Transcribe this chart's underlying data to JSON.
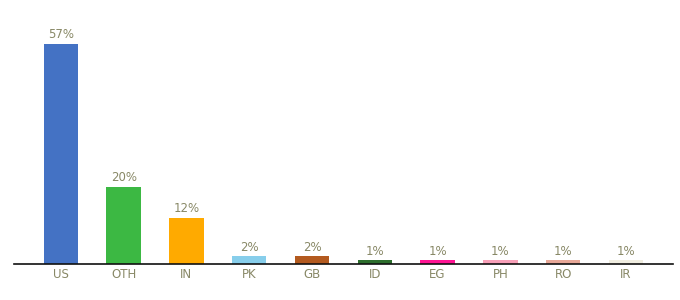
{
  "categories": [
    "US",
    "OTH",
    "IN",
    "PK",
    "GB",
    "ID",
    "EG",
    "PH",
    "RO",
    "IR"
  ],
  "values": [
    57,
    20,
    12,
    2,
    2,
    1,
    1,
    1,
    1,
    1
  ],
  "bar_colors": [
    "#4472c4",
    "#3cb843",
    "#ffaa00",
    "#87ceeb",
    "#b35a1f",
    "#2d6e2d",
    "#ff1493",
    "#f8a0b8",
    "#e8a898",
    "#f0ede0"
  ],
  "title": "",
  "label_fontsize": 8.5,
  "value_fontsize": 8.5,
  "ylim": [
    0,
    66
  ],
  "bar_width": 0.55,
  "background_color": "#ffffff",
  "label_color": "#888866",
  "value_color": "#888866"
}
